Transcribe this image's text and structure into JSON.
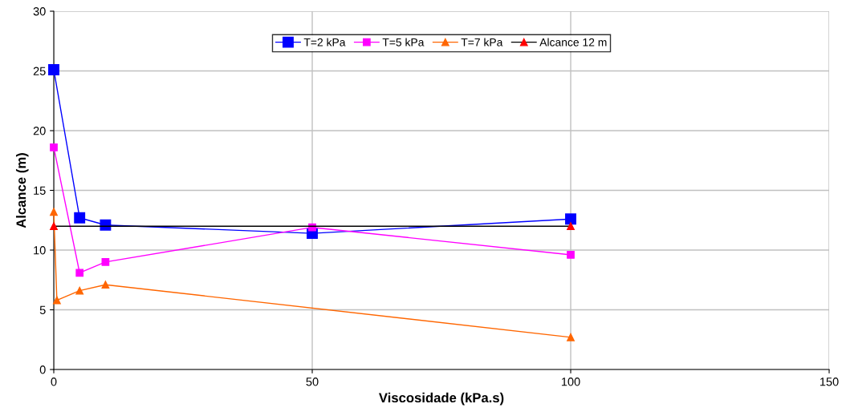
{
  "chart_data": {
    "type": "line",
    "xlabel": "Viscosidade (kPa.s)",
    "ylabel": "Alcance (m)",
    "xlim": [
      0,
      150
    ],
    "xticks": [
      0,
      50,
      100,
      150
    ],
    "ylim": [
      0,
      30
    ],
    "yticks": [
      0,
      5,
      10,
      15,
      20,
      25,
      30
    ],
    "grid": true,
    "legend": "top",
    "series": [
      {
        "name": "T=2 kPa",
        "color": "#0000ff",
        "marker": "square",
        "x": [
          0,
          5,
          10,
          50,
          100
        ],
        "values": [
          25.1,
          12.7,
          12.1,
          11.4,
          12.6
        ]
      },
      {
        "name": "T=5 kPa",
        "color": "#ff00ff",
        "marker": "square",
        "x": [
          0,
          5,
          10,
          50,
          100
        ],
        "values": [
          18.6,
          8.1,
          9.0,
          11.9,
          9.6
        ]
      },
      {
        "name": "T=7 kPa",
        "color": "#ff6600",
        "marker": "triangle",
        "x": [
          0,
          0.6,
          5,
          10,
          100
        ],
        "values": [
          13.2,
          5.8,
          6.6,
          7.1,
          2.7
        ]
      },
      {
        "name": "Alcance 12 m",
        "color": "#000000",
        "colors": [
          "#ff0000",
          "#ff0000"
        ],
        "marker": "triangle",
        "x": [
          0,
          100
        ],
        "values": [
          12,
          12
        ]
      }
    ]
  }
}
